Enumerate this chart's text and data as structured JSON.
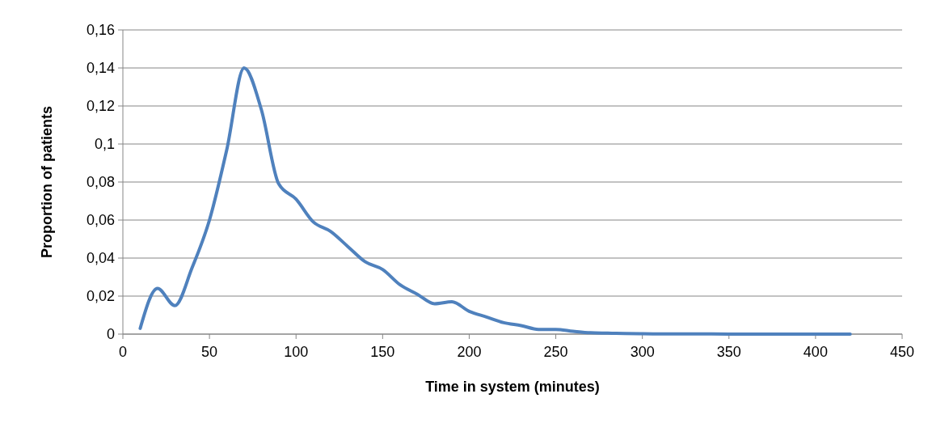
{
  "chart_data": {
    "type": "line",
    "xlabel": "Time in system (minutes)",
    "ylabel": "Proportion of patients",
    "x": [
      10,
      20,
      30,
      40,
      50,
      60,
      70,
      80,
      90,
      100,
      110,
      120,
      130,
      140,
      150,
      160,
      170,
      180,
      190,
      200,
      210,
      220,
      230,
      240,
      250,
      260,
      270,
      280,
      290,
      300,
      320,
      340,
      360,
      380,
      400,
      420
    ],
    "series": [
      {
        "color": "#4f81bd",
        "values": [
          0.003,
          0.024,
          0.015,
          0.035,
          0.06,
          0.097,
          0.14,
          0.118,
          0.079,
          0.071,
          0.059,
          0.054,
          0.046,
          0.038,
          0.034,
          0.026,
          0.021,
          0.016,
          0.017,
          0.012,
          0.009,
          0.006,
          0.0045,
          0.0025,
          0.0025,
          0.0015,
          0.0007,
          0.0005,
          0.0003,
          0.0002,
          0.0001,
          0.0001,
          0,
          0,
          0,
          0
        ]
      }
    ],
    "xlim": [
      0,
      450
    ],
    "xticks": [
      0,
      50,
      100,
      150,
      200,
      250,
      300,
      350,
      400,
      450
    ],
    "ylim": [
      0,
      0.16
    ],
    "yticks": [
      0,
      {
        "value": 0.02,
        "label": "0,02"
      },
      {
        "value": 0.04,
        "label": "0,04"
      },
      {
        "value": 0.06,
        "label": "0,06"
      },
      {
        "value": 0.08,
        "label": "0,08"
      },
      {
        "value": 0.1,
        "label": "0,1"
      },
      {
        "value": 0.12,
        "label": "0,12"
      },
      {
        "value": 0.14,
        "label": "0,14"
      },
      {
        "value": 0.16,
        "label": "0,16"
      }
    ],
    "grid": "y",
    "marker": "none",
    "line_style": "solid"
  }
}
